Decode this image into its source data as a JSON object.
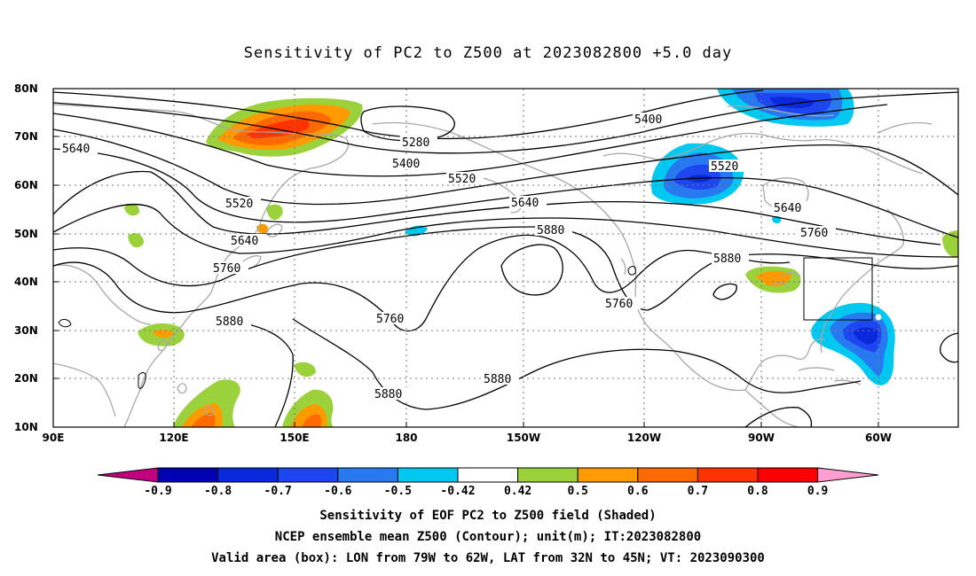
{
  "title": "Sensitivity of PC2 to Z500 at 2023082800 +5.0 day",
  "axes": {
    "lat_labels": [
      "80N",
      "70N",
      "60N",
      "50N",
      "40N",
      "30N",
      "20N",
      "10N"
    ],
    "lon_labels": [
      "90E",
      "120E",
      "150E",
      "180",
      "150W",
      "120W",
      "90W",
      "60W"
    ]
  },
  "contour_labels": [
    "5640",
    "5280",
    "5400",
    "5520",
    "5640",
    "5520",
    "5400",
    "5520",
    "5640",
    "5760",
    "5880",
    "5760",
    "5880",
    "5760",
    "5880",
    "5880",
    "5880",
    "5760"
  ],
  "colorbar": {
    "labels": [
      "-0.9",
      "-0.8",
      "-0.7",
      "-0.6",
      "-0.5",
      "-0.42",
      "0.42",
      "0.5",
      "0.6",
      "0.7",
      "0.8",
      "0.9"
    ],
    "colors": [
      "#c0007f",
      "#0000b4",
      "#0a28dc",
      "#1e46f0",
      "#2878f0",
      "#00c8f0",
      "#ffffff",
      "#9bd23c",
      "#ff9a00",
      "#ff6a00",
      "#ff3200",
      "#ff0000",
      "#ff9fd0"
    ]
  },
  "valid_box": {
    "lon_min": "79W",
    "lon_max": "62W",
    "lat_min": "32N",
    "lat_max": "45N"
  },
  "captions": [
    "Sensitivity of EOF PC2 to Z500 field (Shaded)",
    "NCEP ensemble mean Z500 (Contour); unit(m); IT:2023082800",
    "Valid area (box): LON from 79W to 62W, LAT from 32N to 45N; VT: 2023090300"
  ]
}
